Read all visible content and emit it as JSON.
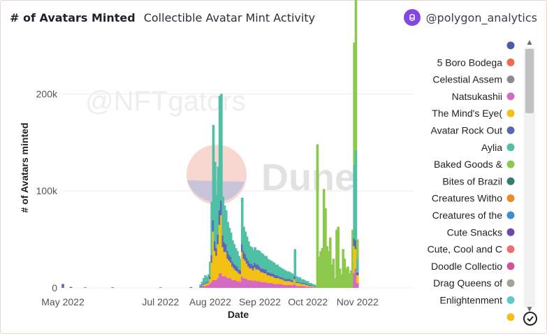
{
  "header": {
    "title": "# of Avatars Minted",
    "subtitle": "Collectible Avatar Mint Activity",
    "brand": "@polygon_analytics",
    "brand_icon": "polygon-logo-icon",
    "brand_color": "#8247e5"
  },
  "watermark": {
    "handle": "@NFTgators",
    "logo_text": "Dune"
  },
  "chart_data": {
    "type": "bar",
    "stacked": true,
    "xlabel": "Date",
    "ylabel": "# of Avatars minted",
    "x_ticks": [
      "May 2022",
      "Jul 2022",
      "Aug 2022",
      "Sep 2022",
      "Oct 2022",
      "Nov 2022"
    ],
    "y_ticks": [
      "0",
      "100k",
      "200k"
    ],
    "ylim": [
      0,
      255000
    ],
    "xlim": [
      "2022-05-01",
      "2022-12-06"
    ],
    "grid": "horizontal",
    "legend_position": "right",
    "legend": [
      {
        "label": "",
        "color": "#4c5aa8"
      },
      {
        "label": "5 Boro Bodega",
        "color": "#ef6b52"
      },
      {
        "label": "Celestial Assem",
        "color": "#8d8d8d"
      },
      {
        "label": "Natsukashii",
        "color": "#d66ac2"
      },
      {
        "label": "The Mind's Eye(",
        "color": "#f2c114"
      },
      {
        "label": "Avatar Rock Out",
        "color": "#5a66b8"
      },
      {
        "label": "Aylia",
        "color": "#4fc0a6"
      },
      {
        "label": "Baked Goods &",
        "color": "#8cc84b"
      },
      {
        "label": "Bites of Brazil",
        "color": "#2f7f6f"
      },
      {
        "label": "Creatures Witho",
        "color": "#ef8a24"
      },
      {
        "label": "Creatures of the",
        "color": "#3b8fd0"
      },
      {
        "label": "Cute Snacks",
        "color": "#6b4aa8"
      },
      {
        "label": "Cute, Cool and C",
        "color": "#ef6e6e"
      },
      {
        "label": "Doodle Collectio",
        "color": "#d64f9a"
      },
      {
        "label": "Drag Queens of",
        "color": "#a3a394"
      },
      {
        "label": "Enlightenment",
        "color": "#5ec7c9"
      },
      {
        "label": "",
        "color": "#f2c114"
      }
    ],
    "series_order": [
      "Natsukashii",
      "The Mind's Eye(",
      "Avatar Rock Out",
      "Aylia",
      "Baked Goods &"
    ],
    "bars": [
      {
        "date": "2022-05-01",
        "values": [
          0,
          0,
          4000,
          0,
          0
        ]
      },
      {
        "date": "2022-05-06",
        "values": [
          0,
          0,
          1000,
          0,
          0
        ]
      },
      {
        "date": "2022-05-15",
        "values": [
          800,
          0,
          0,
          0,
          0
        ]
      },
      {
        "date": "2022-06-01",
        "values": [
          0,
          0,
          600,
          0,
          0
        ]
      },
      {
        "date": "2022-07-01",
        "values": [
          0,
          0,
          500,
          0,
          0
        ]
      },
      {
        "date": "2022-07-20",
        "values": [
          0,
          0,
          800,
          0,
          0
        ]
      },
      {
        "date": "2022-07-26",
        "values": [
          1000,
          0,
          500,
          2000,
          0
        ]
      },
      {
        "date": "2022-07-27",
        "values": [
          1500,
          0,
          800,
          4000,
          0
        ]
      },
      {
        "date": "2022-07-28",
        "values": [
          2000,
          1000,
          1000,
          6000,
          0
        ]
      },
      {
        "date": "2022-07-29",
        "values": [
          2000,
          2000,
          1000,
          8000,
          0
        ]
      },
      {
        "date": "2022-07-30",
        "values": [
          2500,
          2000,
          1000,
          6000,
          0
        ]
      },
      {
        "date": "2022-07-31",
        "values": [
          3000,
          2000,
          1000,
          8000,
          0
        ]
      },
      {
        "date": "2022-08-01",
        "values": [
          4000,
          5000,
          3000,
          15000,
          0
        ]
      },
      {
        "date": "2022-08-02",
        "values": [
          6000,
          20000,
          8000,
          55000,
          0
        ]
      },
      {
        "date": "2022-08-03",
        "values": [
          8000,
          50000,
          12000,
          98000,
          0
        ]
      },
      {
        "date": "2022-08-04",
        "values": [
          8000,
          30000,
          10000,
          82000,
          0
        ]
      },
      {
        "date": "2022-08-05",
        "values": [
          8000,
          25000,
          8000,
          55000,
          0
        ]
      },
      {
        "date": "2022-08-06",
        "values": [
          10000,
          35000,
          10000,
          70000,
          0
        ]
      },
      {
        "date": "2022-08-07",
        "values": [
          15000,
          50000,
          15000,
          118000,
          0
        ]
      },
      {
        "date": "2022-08-08",
        "values": [
          15000,
          60000,
          15000,
          110000,
          0
        ]
      },
      {
        "date": "2022-08-09",
        "values": [
          12000,
          30000,
          12000,
          40000,
          0
        ]
      },
      {
        "date": "2022-08-10",
        "values": [
          12000,
          25000,
          10000,
          38000,
          0
        ]
      },
      {
        "date": "2022-08-11",
        "values": [
          12000,
          25000,
          8000,
          35000,
          0
        ]
      },
      {
        "date": "2022-08-12",
        "values": [
          10000,
          20000,
          8000,
          30000,
          0
        ]
      },
      {
        "date": "2022-08-13",
        "values": [
          10000,
          18000,
          6000,
          28000,
          0
        ]
      },
      {
        "date": "2022-08-14",
        "values": [
          10000,
          16000,
          6000,
          25000,
          0
        ]
      },
      {
        "date": "2022-08-15",
        "values": [
          8000,
          14000,
          5000,
          22000,
          0
        ]
      },
      {
        "date": "2022-08-16",
        "values": [
          8000,
          12000,
          5000,
          20000,
          0
        ]
      },
      {
        "date": "2022-08-17",
        "values": [
          8000,
          10000,
          5000,
          18000,
          0
        ]
      },
      {
        "date": "2022-08-18",
        "values": [
          7000,
          10000,
          5000,
          16000,
          0
        ]
      },
      {
        "date": "2022-08-19",
        "values": [
          7000,
          8000,
          4000,
          14000,
          0
        ]
      },
      {
        "date": "2022-08-20",
        "values": [
          6000,
          8000,
          4000,
          12000,
          0
        ]
      },
      {
        "date": "2022-08-21",
        "values": [
          12000,
          25000,
          8000,
          48000,
          0
        ]
      },
      {
        "date": "2022-08-22",
        "values": [
          10000,
          20000,
          8000,
          25000,
          0
        ]
      },
      {
        "date": "2022-08-23",
        "values": [
          10000,
          18000,
          7000,
          23000,
          0
        ]
      },
      {
        "date": "2022-08-24",
        "values": [
          9000,
          16000,
          6000,
          22000,
          0
        ]
      },
      {
        "date": "2022-08-25",
        "values": [
          8000,
          14000,
          6000,
          20000,
          0
        ]
      },
      {
        "date": "2022-08-26",
        "values": [
          8000,
          12000,
          5000,
          18000,
          0
        ]
      },
      {
        "date": "2022-08-27",
        "values": [
          8000,
          12000,
          5000,
          17000,
          0
        ]
      },
      {
        "date": "2022-08-28",
        "values": [
          7000,
          11000,
          5000,
          16000,
          0
        ]
      },
      {
        "date": "2022-08-29",
        "values": [
          8000,
          13000,
          5000,
          16000,
          0
        ]
      },
      {
        "date": "2022-08-30",
        "values": [
          7000,
          12000,
          5000,
          15000,
          0
        ]
      },
      {
        "date": "2022-08-31",
        "values": [
          7000,
          12000,
          5000,
          15000,
          0
        ]
      },
      {
        "date": "2022-09-01",
        "values": [
          7000,
          11000,
          4000,
          16000,
          0
        ]
      },
      {
        "date": "2022-09-02",
        "values": [
          6000,
          10000,
          4000,
          16000,
          0
        ]
      },
      {
        "date": "2022-09-03",
        "values": [
          6000,
          10000,
          4000,
          15000,
          0
        ]
      },
      {
        "date": "2022-09-04",
        "values": [
          6000,
          9000,
          4000,
          14000,
          0
        ]
      },
      {
        "date": "2022-09-05",
        "values": [
          6000,
          9000,
          4000,
          14000,
          0
        ]
      },
      {
        "date": "2022-09-06",
        "values": [
          5000,
          8000,
          3000,
          14000,
          0
        ]
      },
      {
        "date": "2022-09-07",
        "values": [
          5000,
          8000,
          3000,
          13000,
          0
        ]
      },
      {
        "date": "2022-09-08",
        "values": [
          5000,
          7000,
          3000,
          13000,
          0
        ]
      },
      {
        "date": "2022-09-09",
        "values": [
          5000,
          7000,
          3000,
          12000,
          0
        ]
      },
      {
        "date": "2022-09-10",
        "values": [
          4000,
          7000,
          3000,
          12000,
          0
        ]
      },
      {
        "date": "2022-09-11",
        "values": [
          4000,
          6000,
          3000,
          11000,
          0
        ]
      },
      {
        "date": "2022-09-12",
        "values": [
          4000,
          6000,
          3000,
          11000,
          0
        ]
      },
      {
        "date": "2022-09-13",
        "values": [
          4000,
          6000,
          2000,
          10000,
          0
        ]
      },
      {
        "date": "2022-09-14",
        "values": [
          4000,
          5000,
          2000,
          10000,
          0
        ]
      },
      {
        "date": "2022-09-15",
        "values": [
          4000,
          5000,
          2000,
          9000,
          0
        ]
      },
      {
        "date": "2022-09-16",
        "values": [
          3000,
          5000,
          2000,
          9000,
          0
        ]
      },
      {
        "date": "2022-09-17",
        "values": [
          3000,
          4000,
          2000,
          9000,
          0
        ]
      },
      {
        "date": "2022-09-18",
        "values": [
          3000,
          4000,
          2000,
          8000,
          0
        ]
      },
      {
        "date": "2022-09-19",
        "values": [
          3000,
          4000,
          2000,
          8000,
          0
        ]
      },
      {
        "date": "2022-09-20",
        "values": [
          3000,
          4000,
          2000,
          7000,
          0
        ]
      },
      {
        "date": "2022-09-21",
        "values": [
          3000,
          3000,
          2000,
          7000,
          0
        ]
      },
      {
        "date": "2022-09-22",
        "values": [
          3000,
          3000,
          1000,
          7000,
          0
        ]
      },
      {
        "date": "2022-09-23",
        "values": [
          4000,
          5000,
          3000,
          28000,
          0
        ]
      },
      {
        "date": "2022-09-24",
        "values": [
          2000,
          3000,
          1000,
          6000,
          0
        ]
      },
      {
        "date": "2022-09-25",
        "values": [
          2000,
          3000,
          1000,
          5000,
          0
        ]
      },
      {
        "date": "2022-09-26",
        "values": [
          2000,
          3000,
          1000,
          5000,
          0
        ]
      },
      {
        "date": "2022-09-27",
        "values": [
          2000,
          2000,
          1000,
          4000,
          0
        ]
      },
      {
        "date": "2022-09-28",
        "values": [
          2000,
          2000,
          1000,
          4000,
          0
        ]
      },
      {
        "date": "2022-09-29",
        "values": [
          2000,
          2000,
          1000,
          3000,
          0
        ]
      },
      {
        "date": "2022-09-30",
        "values": [
          1000,
          2000,
          1000,
          3000,
          0
        ]
      },
      {
        "date": "2022-10-01",
        "values": [
          1000,
          2000,
          1000,
          3000,
          0
        ]
      },
      {
        "date": "2022-10-02",
        "values": [
          1000,
          1000,
          1000,
          2000,
          0
        ]
      },
      {
        "date": "2022-10-03",
        "values": [
          1000,
          1000,
          1000,
          2000,
          0
        ]
      },
      {
        "date": "2022-10-04",
        "values": [
          1000,
          1000,
          500,
          1500,
          0
        ]
      },
      {
        "date": "2022-10-05",
        "values": [
          500,
          1000,
          500,
          1500,
          0
        ]
      },
      {
        "date": "2022-10-06",
        "values": [
          500,
          500,
          500,
          1000,
          0
        ]
      },
      {
        "date": "2022-10-07",
        "values": [
          0,
          0,
          0,
          0,
          148000
        ]
      },
      {
        "date": "2022-10-08",
        "values": [
          0,
          0,
          0,
          0,
          32000
        ]
      },
      {
        "date": "2022-10-09",
        "values": [
          0,
          0,
          0,
          0,
          38000
        ]
      },
      {
        "date": "2022-10-10",
        "values": [
          0,
          0,
          0,
          0,
          41000
        ]
      },
      {
        "date": "2022-10-11",
        "values": [
          0,
          0,
          0,
          0,
          102000
        ]
      },
      {
        "date": "2022-10-12",
        "values": [
          0,
          0,
          0,
          0,
          82000
        ]
      },
      {
        "date": "2022-10-13",
        "values": [
          0,
          0,
          0,
          0,
          43000
        ]
      },
      {
        "date": "2022-10-14",
        "values": [
          0,
          0,
          0,
          0,
          38000
        ]
      },
      {
        "date": "2022-10-15",
        "values": [
          0,
          0,
          0,
          0,
          52000
        ]
      },
      {
        "date": "2022-10-16",
        "values": [
          0,
          0,
          0,
          0,
          24000
        ]
      },
      {
        "date": "2022-10-17",
        "values": [
          0,
          0,
          0,
          0,
          30000
        ]
      },
      {
        "date": "2022-10-18",
        "values": [
          0,
          0,
          0,
          0,
          10000
        ]
      },
      {
        "date": "2022-10-19",
        "values": [
          0,
          0,
          0,
          0,
          60000
        ]
      },
      {
        "date": "2022-10-20",
        "values": [
          0,
          0,
          0,
          0,
          63000
        ]
      },
      {
        "date": "2022-10-21",
        "values": [
          0,
          0,
          0,
          0,
          20000
        ]
      },
      {
        "date": "2022-10-22",
        "values": [
          0,
          0,
          0,
          0,
          14000
        ]
      },
      {
        "date": "2022-10-23",
        "values": [
          0,
          0,
          0,
          0,
          40000
        ]
      },
      {
        "date": "2022-10-24",
        "values": [
          0,
          0,
          0,
          0,
          30000
        ]
      },
      {
        "date": "2022-10-25",
        "values": [
          0,
          0,
          0,
          0,
          20000
        ]
      },
      {
        "date": "2022-10-26",
        "values": [
          0,
          0,
          0,
          0,
          22000
        ]
      },
      {
        "date": "2022-10-27",
        "values": [
          0,
          0,
          0,
          0,
          15000
        ]
      },
      {
        "date": "2022-10-28",
        "values": [
          0,
          0,
          0,
          0,
          18000
        ]
      },
      {
        "date": "2022-10-29",
        "values": [
          0,
          0,
          0,
          0,
          60000
        ]
      },
      {
        "date": "2022-10-30",
        "values": [
          15000,
          28000,
          8000,
          76000,
          126000
        ]
      },
      {
        "date": "2022-10-31",
        "values": [
          20000,
          20000,
          9000,
          93000,
          254000
        ]
      },
      {
        "date": "2022-11-01",
        "values": [
          5000,
          8000,
          3000,
          14000,
          20000
        ]
      }
    ]
  }
}
